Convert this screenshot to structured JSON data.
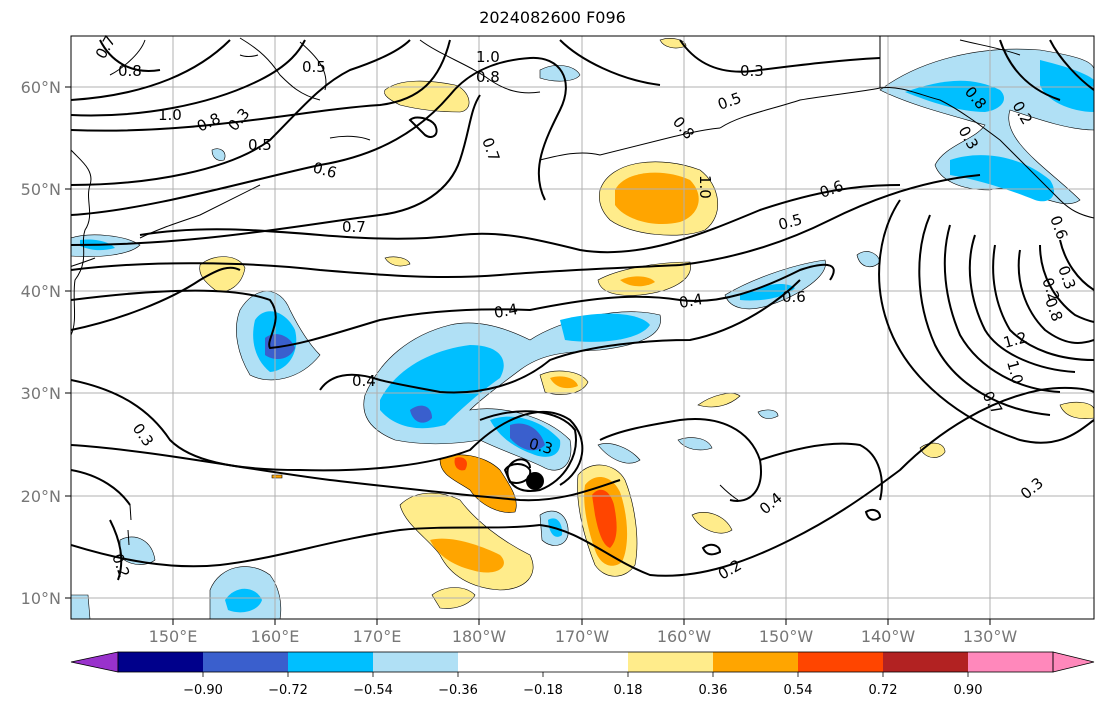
{
  "title": "2024082600 F096",
  "lat_ticks": [
    "60°N",
    "50°N",
    "40°N",
    "30°N",
    "20°N",
    "10°N"
  ],
  "lon_ticks": [
    "150°E",
    "160°E",
    "170°E",
    "180°W",
    "170°W",
    "160°W",
    "150°W",
    "140°W",
    "130°W"
  ],
  "colorbar": {
    "ticks": [
      "−0.90",
      "−0.72",
      "−0.54",
      "−0.36",
      "−0.18",
      "0.18",
      "0.36",
      "0.54",
      "0.72",
      "0.90"
    ],
    "colors": [
      "#9932cc",
      "#00008b",
      "#3a5fcd",
      "#00bfff",
      "#b0e0f5",
      "#ffffff",
      "#ffec8b",
      "#ffa500",
      "#ff4500",
      "#b22222",
      "#ff88bb"
    ]
  },
  "contour_labels": [
    "0.7",
    "0.8",
    "1.0",
    "0.5",
    "0.8",
    "0.3",
    "1.0",
    "0.8",
    "0.5",
    "0.3",
    "0.2",
    "0.8",
    "0.5",
    "0.6",
    "0.7",
    "0.8",
    "1.0",
    "0.6",
    "0.7",
    "0.5",
    "0.4",
    "0.4",
    "0.6",
    "0.4",
    "0.3",
    "0.3",
    "0.3",
    "0.2",
    "0.4",
    "0.2",
    "1.2",
    "1.0",
    "0.7",
    "0.3",
    "0.2",
    "0.6",
    "0.8",
    "0.3"
  ],
  "storm_marker": {
    "lat": 21.5,
    "lon": -174.5
  }
}
